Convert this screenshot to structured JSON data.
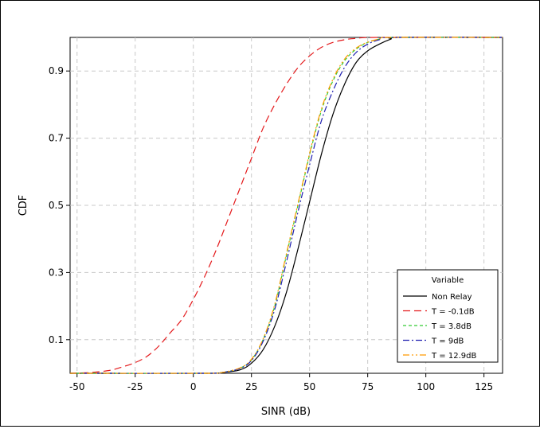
{
  "chart_data": {
    "type": "line",
    "title": "",
    "xlabel": "SINR (dB)",
    "ylabel": "CDF",
    "xlim": [
      -53,
      133
    ],
    "ylim": [
      0,
      1
    ],
    "xticks": [
      -50,
      -25,
      0,
      25,
      50,
      75,
      100,
      125
    ],
    "xtick_labels": [
      "-50",
      "-25",
      "0",
      "25",
      "50",
      "75",
      "100",
      "125"
    ],
    "yticks": [
      0.1,
      0.3,
      0.5,
      0.7,
      0.9
    ],
    "ytick_labels": [
      "0.1",
      "0.3",
      "0.5",
      "0.7",
      "0.9"
    ],
    "grid": true,
    "legend": {
      "title": "Variable",
      "placement": "bottom-right"
    },
    "series": [
      {
        "name": "Non Relay",
        "color": "#000000",
        "dash": "solid",
        "x": [
          -53,
          5,
          12,
          20,
          25,
          30,
          35,
          40,
          45,
          50,
          55,
          60,
          65,
          70,
          75,
          80,
          85,
          88,
          133
        ],
        "y": [
          0,
          0,
          0.002,
          0.01,
          0.03,
          0.07,
          0.14,
          0.24,
          0.37,
          0.51,
          0.65,
          0.77,
          0.86,
          0.925,
          0.96,
          0.98,
          0.995,
          1.0,
          1.0
        ]
      },
      {
        "name": "T = -0.1dB",
        "color": "#e41a1c",
        "dash": "long-dash",
        "x": [
          -53,
          -45,
          -40,
          -35,
          -30,
          -25,
          -20,
          -15,
          -10,
          -5,
          0,
          5,
          10,
          15,
          20,
          25,
          30,
          35,
          40,
          45,
          50,
          55,
          60,
          65,
          70,
          80,
          133
        ],
        "y": [
          0,
          0.002,
          0.005,
          0.01,
          0.02,
          0.032,
          0.05,
          0.08,
          0.12,
          0.16,
          0.22,
          0.29,
          0.37,
          0.46,
          0.55,
          0.64,
          0.73,
          0.8,
          0.86,
          0.91,
          0.945,
          0.97,
          0.985,
          0.993,
          0.997,
          1.0,
          1.0
        ]
      },
      {
        "name": "T = 3.8dB",
        "color": "#33cc33",
        "dash": "short-dash",
        "x": [
          -53,
          5,
          12,
          20,
          25,
          30,
          35,
          40,
          45,
          50,
          55,
          60,
          65,
          70,
          75,
          80,
          85,
          133
        ],
        "y": [
          0,
          0,
          0.002,
          0.015,
          0.04,
          0.1,
          0.2,
          0.35,
          0.5,
          0.65,
          0.78,
          0.87,
          0.93,
          0.965,
          0.985,
          0.995,
          1.0,
          1.0
        ]
      },
      {
        "name": "T = 9dB",
        "color": "#1f1fb0",
        "dash": "dash-dot",
        "x": [
          -53,
          5,
          12,
          20,
          25,
          30,
          35,
          40,
          45,
          50,
          55,
          60,
          65,
          70,
          75,
          80,
          85,
          133
        ],
        "y": [
          0,
          0,
          0.002,
          0.014,
          0.038,
          0.095,
          0.19,
          0.33,
          0.48,
          0.62,
          0.75,
          0.84,
          0.91,
          0.955,
          0.98,
          0.993,
          1.0,
          1.0
        ]
      },
      {
        "name": "T = 12.9dB",
        "color": "#ff9900",
        "dash": "dash-dot-dot",
        "x": [
          -53,
          5,
          12,
          20,
          25,
          30,
          35,
          40,
          45,
          50,
          55,
          60,
          65,
          70,
          75,
          80,
          85,
          133
        ],
        "y": [
          0,
          0,
          0.002,
          0.016,
          0.042,
          0.102,
          0.205,
          0.355,
          0.505,
          0.655,
          0.785,
          0.875,
          0.935,
          0.968,
          0.986,
          0.995,
          1.0,
          1.0
        ]
      }
    ]
  }
}
